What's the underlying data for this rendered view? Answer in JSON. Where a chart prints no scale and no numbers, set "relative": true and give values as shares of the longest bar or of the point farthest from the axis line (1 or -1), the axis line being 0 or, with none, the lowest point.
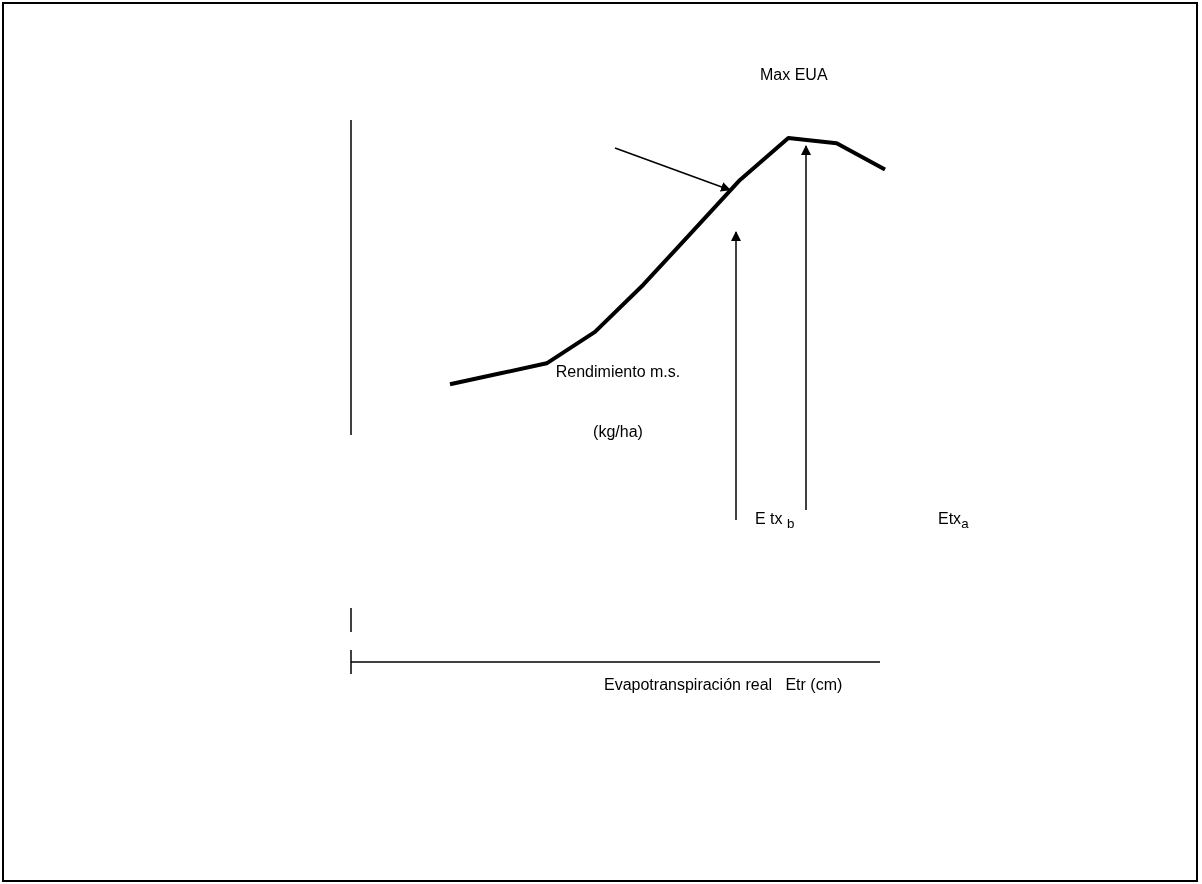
{
  "chart_data": {
    "type": "line",
    "relative": true,
    "categories": [
      null,
      null,
      null,
      null,
      null,
      null,
      null,
      null,
      null,
      null
    ],
    "values": [
      0.53,
      0.55,
      0.57,
      0.63,
      0.72,
      0.82,
      0.92,
      1,
      0.99,
      0.94
    ],
    "color": "#000000",
    "marker": "none",
    "line_style": "solid",
    "xlabel": "Evapotranspiración real   Etr (cm)",
    "ylabel": "Rendimiento m.s. (kg/ha)",
    "annotations": [
      "Max EUA",
      "E tx $_{b}$",
      "Etx$_{a}$"
    ]
  }
}
